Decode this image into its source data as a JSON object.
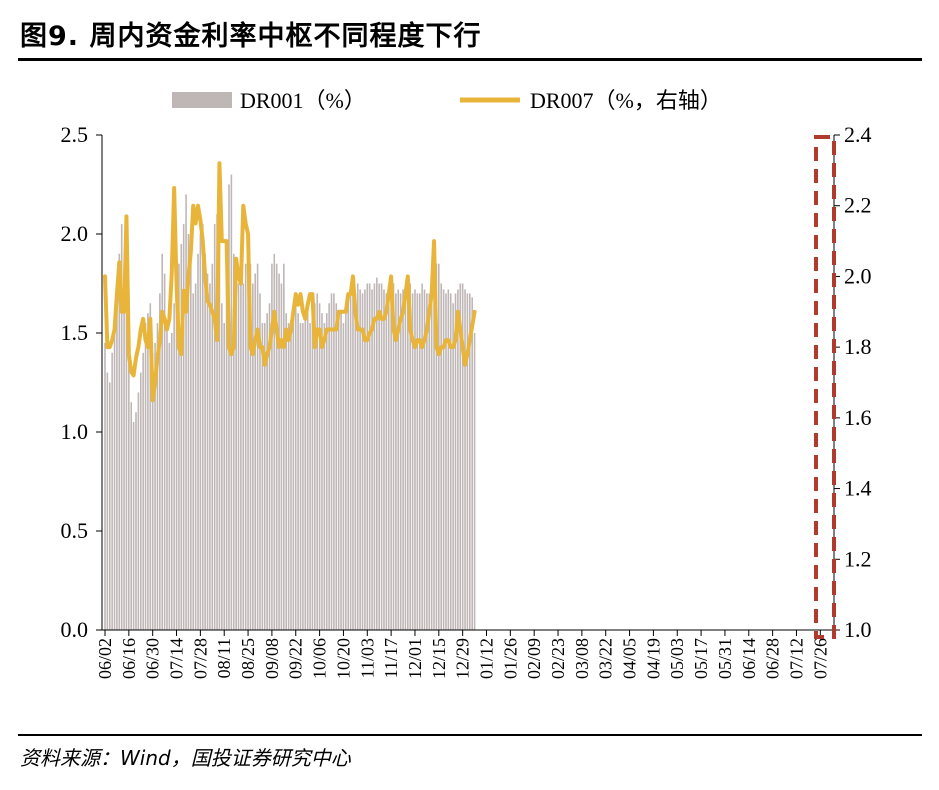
{
  "header": {
    "title": "图9. 周内资金利率中枢不同程度下行"
  },
  "footer": {
    "source": "资料来源：Wind，国投证券研究中心"
  },
  "chart_data": {
    "type": "bar+line",
    "title": "图9. 周内资金利率中枢不同程度下行",
    "legend": [
      {
        "name": "DR001（%）",
        "type": "bar",
        "color": "#bfb6b6"
      },
      {
        "name": "DR007（%，右轴）",
        "type": "line",
        "color": "#e8b53a"
      }
    ],
    "legend_position": "top-center",
    "y_left": {
      "ticks": [
        "0.0",
        "0.5",
        "1.0",
        "1.5",
        "2.0",
        "2.5"
      ],
      "ylim": [
        0,
        2.5
      ]
    },
    "y_right": {
      "ticks": [
        "1.0",
        "1.2",
        "1.4",
        "1.6",
        "1.8",
        "2.0",
        "2.2",
        "2.4"
      ],
      "ylim": [
        1.0,
        2.4
      ]
    },
    "x_ticks": [
      "06/02",
      "06/16",
      "06/30",
      "07/14",
      "07/28",
      "08/11",
      "08/25",
      "09/08",
      "09/22",
      "10/06",
      "10/20",
      "11/03",
      "11/17",
      "12/01",
      "12/15",
      "12/29",
      "01/12",
      "01/26",
      "02/09",
      "02/23",
      "03/08",
      "03/22",
      "04/05",
      "04/19",
      "05/03",
      "05/17",
      "05/31",
      "06/14",
      "06/28",
      "07/12",
      "07/26"
    ],
    "points_per_tick": 10,
    "series": [
      {
        "name": "DR001（%）",
        "type": "bar",
        "axis": "left",
        "values": [
          1.45,
          1.3,
          1.25,
          1.4,
          1.55,
          1.75,
          1.9,
          2.05,
          1.7,
          1.6,
          1.5,
          1.15,
          1.05,
          1.1,
          1.2,
          1.3,
          1.4,
          1.55,
          1.6,
          1.65,
          1.4,
          1.45,
          1.55,
          1.7,
          1.9,
          1.8,
          1.55,
          1.45,
          1.5,
          1.65,
          1.75,
          1.85,
          1.95,
          2.05,
          2.2,
          2.0,
          1.85,
          1.7,
          1.75,
          1.9,
          2.0,
          2.05,
          1.9,
          1.8,
          1.75,
          1.85,
          2.05,
          2.1,
          1.95,
          1.65,
          1.55,
          1.9,
          2.25,
          2.3,
          1.9,
          1.7,
          1.75,
          1.8,
          1.75,
          1.85,
          1.9,
          1.85,
          1.75,
          1.8,
          1.85,
          1.7,
          1.55,
          1.55,
          1.6,
          1.65,
          1.85,
          1.9,
          1.85,
          1.8,
          1.75,
          1.85,
          1.6,
          1.55,
          1.55,
          1.6,
          1.65,
          1.6,
          1.55,
          1.55,
          1.6,
          1.6,
          1.55,
          1.6,
          1.65,
          1.7,
          1.65,
          1.6,
          1.55,
          1.6,
          1.65,
          1.7,
          1.7,
          1.65,
          1.6,
          1.6,
          1.55,
          1.6,
          1.65,
          1.7,
          1.7,
          1.7,
          1.75,
          1.72,
          1.7,
          1.72,
          1.75,
          1.75,
          1.72,
          1.75,
          1.78,
          1.75,
          1.75,
          1.72,
          1.7,
          1.72,
          1.7,
          1.75,
          1.7,
          1.72,
          1.7,
          1.72,
          1.7,
          1.75,
          1.75,
          1.7,
          1.72,
          1.7,
          1.7,
          1.75,
          1.72,
          1.7,
          1.7,
          1.75,
          1.8,
          1.85,
          1.85,
          1.75,
          1.72,
          1.7,
          1.72,
          1.7,
          1.65,
          1.7,
          1.72,
          1.75,
          1.75,
          1.72,
          1.7,
          1.7,
          1.68,
          1.5
        ],
        "note_values_per_tick": true
      },
      {
        "name": "DR007（%，右轴）",
        "type": "line",
        "axis": "right",
        "values": [
          2.0,
          1.8,
          1.8,
          1.82,
          1.85,
          1.95,
          2.04,
          1.9,
          1.9,
          2.17,
          1.78,
          1.73,
          1.72,
          1.77,
          1.8,
          1.85,
          1.88,
          1.82,
          1.8,
          1.88,
          1.65,
          1.7,
          1.77,
          1.82,
          1.9,
          1.88,
          1.85,
          1.88,
          2.01,
          2.25,
          1.98,
          1.8,
          1.78,
          1.96,
          1.9,
          2.0,
          2.07,
          2.2,
          2.15,
          2.2,
          2.16,
          2.1,
          2.0,
          1.93,
          1.92,
          1.9,
          1.88,
          1.82,
          2.32,
          2.1,
          2.1,
          2.1,
          1.8,
          1.78,
          1.8,
          2.05,
          2.0,
          1.98,
          2.2,
          2.15,
          2.12,
          1.8,
          1.78,
          1.82,
          1.85,
          1.8,
          1.8,
          1.75,
          1.78,
          1.8,
          1.85,
          1.9,
          1.85,
          1.8,
          1.82,
          1.8,
          1.85,
          1.82,
          1.85,
          1.9,
          1.95,
          1.92,
          1.95,
          1.9,
          1.88,
          1.92,
          1.95,
          1.95,
          1.8,
          1.85,
          1.85,
          1.8,
          1.82,
          1.85,
          1.85,
          1.85,
          1.85,
          1.85,
          1.9,
          1.9,
          1.9,
          1.9,
          1.95,
          1.95,
          2.0,
          1.9,
          1.85,
          1.85,
          1.85,
          1.82,
          1.82,
          1.84,
          1.85,
          1.88,
          1.88,
          1.9,
          1.88,
          1.88,
          1.9,
          1.95,
          2.0,
          1.85,
          1.82,
          1.85,
          1.88,
          1.9,
          1.95,
          2.0,
          1.85,
          1.82,
          1.8,
          1.82,
          1.82,
          1.8,
          1.82,
          1.85,
          1.9,
          1.95,
          2.1,
          1.8,
          1.78,
          1.8,
          1.8,
          1.82,
          1.82,
          1.8,
          1.8,
          1.82,
          1.9,
          1.85,
          1.8,
          1.75,
          1.78,
          1.82,
          1.86,
          1.9
        ]
      }
    ],
    "highlight_box": {
      "style": "dashed",
      "color": "#b03a2e",
      "covers_tick": "07/26"
    }
  }
}
